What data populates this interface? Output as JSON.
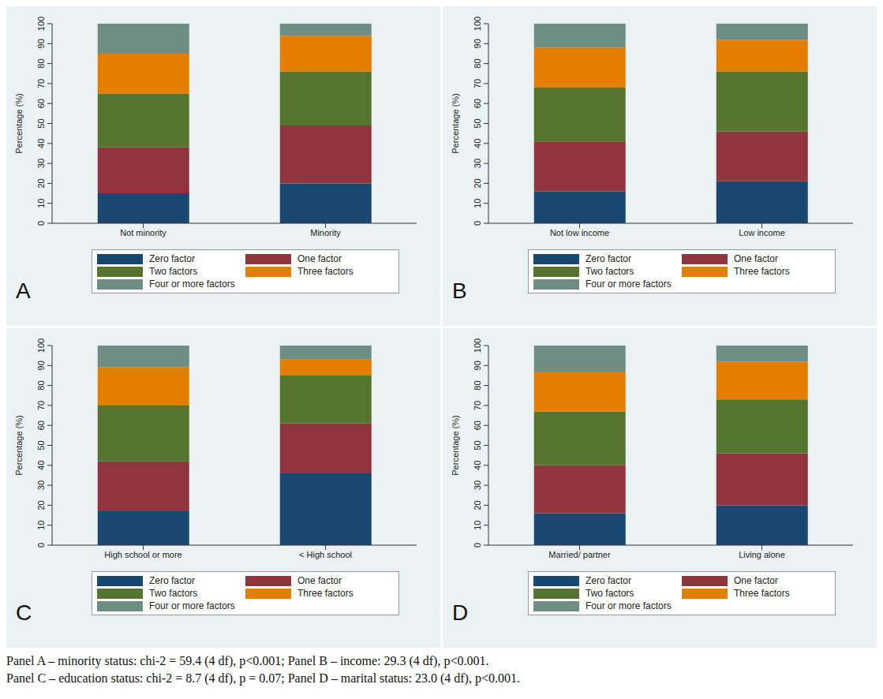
{
  "chart_data": [
    {
      "type": "bar",
      "label": "A",
      "stacked": true,
      "grid": false,
      "y_label": "Percentage (%)",
      "categories": [
        "Not minority",
        "Minority"
      ],
      "ylim": [
        0,
        100
      ],
      "yticks": [
        0,
        10,
        20,
        30,
        40,
        50,
        60,
        70,
        80,
        90,
        100
      ],
      "series": [
        {
          "name": "Zero factor",
          "color": "#1a476f",
          "values": [
            15,
            20
          ]
        },
        {
          "name": "One factor",
          "color": "#90353b",
          "values": [
            23,
            29
          ]
        },
        {
          "name": "Two factors",
          "color": "#55752f",
          "values": [
            27,
            27
          ]
        },
        {
          "name": "Three factors",
          "color": "#e37e00",
          "values": [
            20,
            18
          ]
        },
        {
          "name": "Four or more factors",
          "color": "#6e8e84",
          "values": [
            15,
            6
          ]
        }
      ]
    },
    {
      "type": "bar",
      "label": "B",
      "stacked": true,
      "grid": false,
      "y_label": "Percentage (%)",
      "categories": [
        "Not low income",
        "Low income"
      ],
      "ylim": [
        0,
        100
      ],
      "yticks": [
        0,
        10,
        20,
        30,
        40,
        50,
        60,
        70,
        80,
        90,
        100
      ],
      "series": [
        {
          "name": "Zero factor",
          "color": "#1a476f",
          "values": [
            16,
            21
          ]
        },
        {
          "name": "One factor",
          "color": "#90353b",
          "values": [
            25,
            25
          ]
        },
        {
          "name": "Two factors",
          "color": "#55752f",
          "values": [
            27,
            30
          ]
        },
        {
          "name": "Three factors",
          "color": "#e37e00",
          "values": [
            20,
            16
          ]
        },
        {
          "name": "Four or more factors",
          "color": "#6e8e84",
          "values": [
            12,
            8
          ]
        }
      ]
    },
    {
      "type": "bar",
      "label": "C",
      "stacked": true,
      "grid": false,
      "y_label": "Percentage (%)",
      "categories": [
        "High school or more",
        "< High school"
      ],
      "ylim": [
        0,
        100
      ],
      "yticks": [
        0,
        10,
        20,
        30,
        40,
        50,
        60,
        70,
        80,
        90,
        100
      ],
      "series": [
        {
          "name": "Zero factor",
          "color": "#1a476f",
          "values": [
            17,
            36
          ]
        },
        {
          "name": "One factor",
          "color": "#90353b",
          "values": [
            25,
            25
          ]
        },
        {
          "name": "Two factors",
          "color": "#55752f",
          "values": [
            28,
            24
          ]
        },
        {
          "name": "Three factors",
          "color": "#e37e00",
          "values": [
            19,
            8
          ]
        },
        {
          "name": "Four or more factors",
          "color": "#6e8e84",
          "values": [
            11,
            7
          ]
        }
      ]
    },
    {
      "type": "bar",
      "label": "D",
      "stacked": true,
      "grid": false,
      "y_label": "Percentage (%)",
      "categories": [
        "Married/ partner",
        "Living alone"
      ],
      "ylim": [
        0,
        100
      ],
      "yticks": [
        0,
        10,
        20,
        30,
        40,
        50,
        60,
        70,
        80,
        90,
        100
      ],
      "series": [
        {
          "name": "Zero factor",
          "color": "#1a476f",
          "values": [
            16,
            20
          ]
        },
        {
          "name": "One factor",
          "color": "#90353b",
          "values": [
            24,
            26
          ]
        },
        {
          "name": "Two factors",
          "color": "#55752f",
          "values": [
            27,
            27
          ]
        },
        {
          "name": "Three factors",
          "color": "#e37e00",
          "values": [
            20,
            19
          ]
        },
        {
          "name": "Four or more factors",
          "color": "#6e8e84",
          "values": [
            13,
            8
          ]
        }
      ]
    }
  ],
  "footnote": [
    "Panel A – minority status: chi-2 = 59.4 (4 df), p<0.001; Panel B – income: 29.3 (4 df), p<0.001.",
    "Panel C – education status: chi-2 = 8.7 (4 df), p = 0.07; Panel D – marital status:  23.0 (4 df), p<0.001."
  ]
}
